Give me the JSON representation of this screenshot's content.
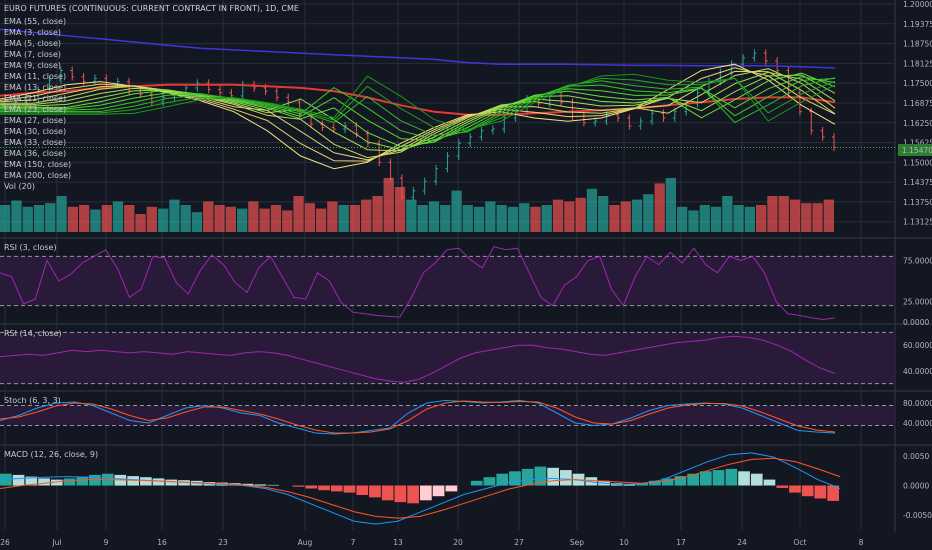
{
  "title": "EURO FUTURES (CONTINUOUS: CURRENT CONTRACT IN FRONT), 1D, CME",
  "colors": {
    "bg": "#131722",
    "grid": "#2a2e39",
    "up": "#26a69a",
    "down": "#ef5350",
    "rsi_band": "#2a1a3a",
    "rsi_line": "#9c27b0",
    "stoch_k": "#2196f3",
    "stoch_d": "#ff5722",
    "macd_line": "#2196f3",
    "signal_line": "#ff5722",
    "ema_red": "#e53935",
    "ema_purple": "#3f35d9",
    "price_tag": "#2e7d32"
  },
  "legend": {
    "ema_labels": [
      "EMA (55, close)",
      "EMA (3, close)",
      "EMA (5, close)",
      "EMA (7, close)",
      "EMA (9, close)",
      "EMA (11, close)",
      "EMA (13, close)",
      "EMA (21, close)",
      "EMA (23, close)",
      "EMA (27, close)",
      "EMA (30, close)",
      "EMA (33, close)",
      "EMA (36, close)",
      "EMA (150, close)",
      "EMA (200, close)"
    ],
    "vol_label": "Vol (20)",
    "rsi3_label": "RSI (3, close)",
    "rsi14_label": "RSI (14, close)",
    "stoch_label": "Stoch (6, 3, 3)",
    "macd_label": "MACD (12, 26, close, 9)"
  },
  "current_price": "1.15470",
  "chart_data": {
    "type": "line",
    "x_ticks": [
      "26",
      "Jul",
      "9",
      "16",
      "23",
      "Aug",
      "7",
      "13",
      "20",
      "27",
      "Sep",
      "10",
      "17",
      "24",
      "Oct",
      "8"
    ],
    "price_ticks": [
      "1.20000",
      "1.19375",
      "1.18750",
      "1.18125",
      "1.17500",
      "1.16875",
      "1.16250",
      "1.15625",
      "1.15000",
      "1.14375",
      "1.13750",
      "1.13125"
    ],
    "price_range": [
      1.128,
      1.2
    ],
    "close": [
      1.168,
      1.169,
      1.171,
      1.173,
      1.176,
      1.179,
      1.177,
      1.1755,
      1.1765,
      1.1745,
      1.1755,
      1.1725,
      1.1715,
      1.169,
      1.1705,
      1.1715,
      1.1735,
      1.175,
      1.173,
      1.172,
      1.171,
      1.1745,
      1.1735,
      1.1725,
      1.1705,
      1.169,
      1.165,
      1.162,
      1.161,
      1.1605,
      1.1615,
      1.159,
      1.156,
      1.15,
      1.145,
      1.139,
      1.141,
      1.144,
      1.148,
      1.152,
      1.156,
      1.158,
      1.16,
      1.1605,
      1.164,
      1.166,
      1.17,
      1.1685,
      1.171,
      1.169,
      1.1645,
      1.1625,
      1.163,
      1.165,
      1.164,
      1.1615,
      1.163,
      1.1655,
      1.164,
      1.166,
      1.1685,
      1.172,
      1.1755,
      1.1785,
      1.181,
      1.183,
      1.1845,
      1.182,
      1.179,
      1.172,
      1.166,
      1.16,
      1.158,
      1.1547
    ],
    "ema_fast_levels": [
      1.17,
      1.172,
      1.1745,
      1.1755,
      1.174,
      1.172,
      1.1695,
      1.166,
      1.16,
      1.152,
      1.148,
      1.15,
      1.156,
      1.161,
      1.165,
      1.166,
      1.164,
      1.163,
      1.164,
      1.167,
      1.173,
      1.179,
      1.181,
      1.176,
      1.168,
      1.162
    ],
    "ema55": [
      1.171,
      1.172,
      1.1725,
      1.1735,
      1.174,
      1.1745,
      1.1745,
      1.1745,
      1.174,
      1.1735,
      1.1725,
      1.1705,
      1.168,
      1.166,
      1.165,
      1.165,
      1.1655,
      1.166,
      1.1665,
      1.167,
      1.168,
      1.169,
      1.17,
      1.1705,
      1.1705,
      1.169
    ],
    "ema200": [
      1.192,
      1.191,
      1.19,
      1.189,
      1.188,
      1.187,
      1.186,
      1.1855,
      1.185,
      1.1845,
      1.184,
      1.1835,
      1.183,
      1.1825,
      1.1815,
      1.181,
      1.181,
      1.181,
      1.1808,
      1.1806,
      1.1806,
      1.1805,
      1.1805,
      1.1805,
      1.1802,
      1.1798
    ],
    "volume": [
      0.3,
      0.35,
      0.28,
      0.3,
      0.32,
      0.4,
      0.28,
      0.3,
      0.25,
      0.3,
      0.34,
      0.3,
      0.2,
      0.28,
      0.26,
      0.36,
      0.3,
      0.22,
      0.34,
      0.3,
      0.28,
      0.26,
      0.34,
      0.26,
      0.3,
      0.24,
      0.4,
      0.32,
      0.26,
      0.34,
      0.3,
      0.3,
      0.36,
      0.4,
      0.6,
      0.5,
      0.36,
      0.3,
      0.34,
      0.3,
      0.46,
      0.3,
      0.28,
      0.34,
      0.3,
      0.28,
      0.32,
      0.28,
      0.3,
      0.36,
      0.34,
      0.38,
      0.48,
      0.4,
      0.3,
      0.34,
      0.36,
      0.42,
      0.54,
      0.6,
      0.28,
      0.24,
      0.3,
      0.28,
      0.4,
      0.3,
      0.28,
      0.3,
      0.4,
      0.4,
      0.36,
      0.32,
      0.32,
      0.36
    ],
    "rsi3_ticks": [
      "75.0000",
      "25.0000",
      "0.0000"
    ],
    "rsi3": [
      60,
      55,
      22,
      28,
      75,
      50,
      58,
      72,
      80,
      88,
      65,
      30,
      40,
      80,
      78,
      48,
      34,
      62,
      82,
      70,
      48,
      36,
      66,
      80,
      55,
      30,
      28,
      60,
      50,
      24,
      12,
      10,
      8,
      7,
      6,
      30,
      60,
      72,
      88,
      90,
      76,
      66,
      92,
      88,
      90,
      60,
      30,
      20,
      45,
      55,
      75,
      80,
      40,
      20,
      55,
      80,
      70,
      85,
      72,
      90,
      70,
      60,
      80,
      75,
      80,
      60,
      25,
      10,
      8,
      5,
      3,
      5
    ],
    "rsi14_ticks": [
      "60.0000",
      "40.0000"
    ],
    "rsi14": [
      51,
      52,
      53,
      52,
      54,
      56,
      55,
      56,
      55,
      54,
      55,
      54,
      53,
      55,
      54,
      53,
      52,
      54,
      55,
      54,
      52,
      49,
      46,
      43,
      40,
      37,
      34,
      32,
      31,
      33,
      38,
      44,
      50,
      54,
      56,
      58,
      60,
      60,
      58,
      57,
      55,
      53,
      52,
      54,
      56,
      58,
      60,
      62,
      63,
      64,
      66,
      67,
      66,
      64,
      60,
      55,
      48,
      42,
      38
    ],
    "stoch_ticks": [
      "80.0000",
      "40.0000"
    ],
    "stoch_k": [
      45,
      55,
      70,
      80,
      82,
      75,
      60,
      45,
      40,
      55,
      70,
      75,
      70,
      60,
      55,
      40,
      30,
      20,
      18,
      20,
      25,
      30,
      60,
      80,
      85,
      83,
      80,
      82,
      85,
      80,
      60,
      40,
      35,
      38,
      50,
      65,
      75,
      78,
      80,
      78,
      70,
      55,
      40,
      25,
      22,
      20
    ],
    "stoch_d": [
      48,
      52,
      62,
      74,
      80,
      78,
      68,
      55,
      45,
      50,
      62,
      72,
      72,
      65,
      58,
      48,
      36,
      26,
      20,
      20,
      22,
      28,
      45,
      68,
      80,
      84,
      82,
      81,
      83,
      82,
      70,
      52,
      40,
      38,
      45,
      58,
      70,
      76,
      79,
      79,
      74,
      62,
      48,
      34,
      26,
      22
    ],
    "macd_ticks": [
      "0.0050",
      "0.0000",
      "-0.0050"
    ],
    "macd_hist": [
      0.002,
      0.0018,
      0.0015,
      0.0012,
      0.001,
      0.0012,
      0.0015,
      0.0018,
      0.002,
      0.0018,
      0.0016,
      0.0014,
      0.0012,
      0.001,
      0.0009,
      0.0008,
      0.0006,
      0.0005,
      0.0004,
      0.0003,
      0.0002,
      0.0001,
      0.0,
      -0.0002,
      -0.0005,
      -0.0008,
      -0.001,
      -0.0012,
      -0.0016,
      -0.002,
      -0.0025,
      -0.0028,
      -0.003,
      -0.0025,
      -0.0018,
      -0.001,
      0.0,
      0.0008,
      0.0014,
      0.002,
      0.0024,
      0.0028,
      0.0032,
      0.003,
      0.0026,
      0.002,
      0.0014,
      0.0008,
      0.0004,
      0.0002,
      0.0004,
      0.0008,
      0.0012,
      0.0016,
      0.002,
      0.0024,
      0.0026,
      0.0028,
      0.0024,
      0.002,
      0.001,
      -0.0004,
      -0.0012,
      -0.0018,
      -0.0022,
      -0.0026
    ],
    "macd_line": [
      0.001,
      0.0012,
      0.0014,
      0.0015,
      0.0014,
      0.0012,
      0.001,
      0.0008,
      0.0006,
      0.0004,
      0.0002,
      0.0,
      -0.0005,
      -0.0015,
      -0.003,
      -0.0045,
      -0.006,
      -0.0065,
      -0.006,
      -0.0045,
      -0.003,
      -0.0015,
      -0.0005,
      0.0005,
      0.001,
      0.0012,
      0.001,
      0.0005,
      0.0002,
      0.0003,
      0.001,
      0.0025,
      0.004,
      0.0052,
      0.0055,
      0.0048,
      0.003,
      0.001,
      -0.0005
    ],
    "signal_line": [
      -0.0005,
      0.0,
      0.0004,
      0.0008,
      0.001,
      0.001,
      0.0009,
      0.0008,
      0.0006,
      0.0005,
      0.0003,
      0.0001,
      -0.0003,
      -0.001,
      -0.002,
      -0.0032,
      -0.0044,
      -0.0052,
      -0.0055,
      -0.0052,
      -0.0042,
      -0.003,
      -0.0018,
      -0.0006,
      0.0002,
      0.0008,
      0.001,
      0.0008,
      0.0006,
      0.0004,
      0.0007,
      0.0014,
      0.0025,
      0.0036,
      0.0044,
      0.0046,
      0.004,
      0.0028,
      0.0015
    ]
  }
}
